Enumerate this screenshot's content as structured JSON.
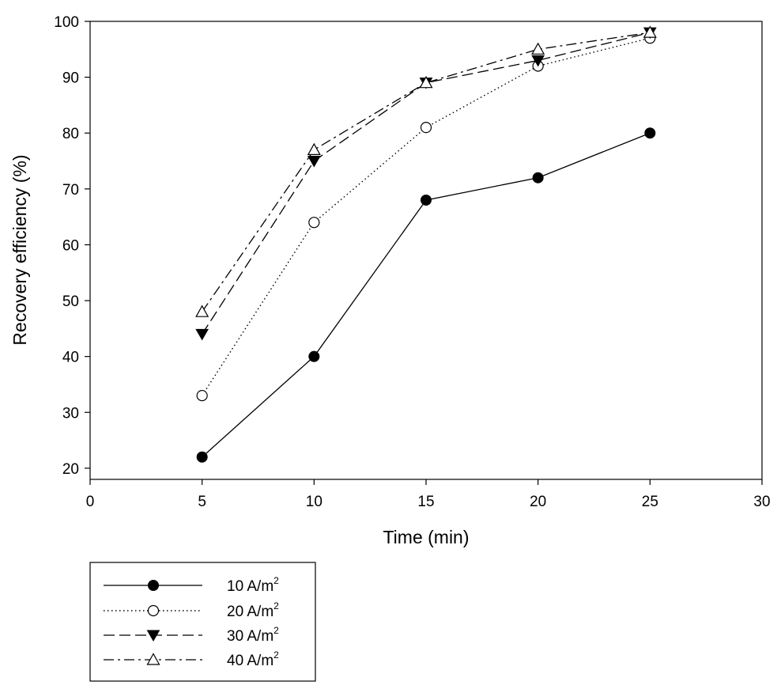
{
  "chart_data": {
    "type": "line",
    "title": "",
    "xlabel": "Time (min)",
    "ylabel": "Recovery efficiency (%)",
    "xlim": [
      0,
      30
    ],
    "ylim": [
      18,
      100
    ],
    "x_ticks": [
      0,
      5,
      10,
      15,
      20,
      25,
      30
    ],
    "y_ticks": [
      20,
      30,
      40,
      50,
      60,
      70,
      80,
      90,
      100
    ],
    "x": [
      5,
      10,
      15,
      20,
      25
    ],
    "grid": false,
    "legend_position": "bottom-left",
    "series": [
      {
        "name": "10 A/m",
        "unit_sup": "2",
        "marker": "filled-circle",
        "dash": "solid",
        "values": [
          22,
          40,
          68,
          72,
          80
        ]
      },
      {
        "name": "20 A/m",
        "unit_sup": "2",
        "marker": "open-circle",
        "dash": "dotted",
        "values": [
          33,
          64,
          81,
          92,
          97
        ]
      },
      {
        "name": "30 A/m",
        "unit_sup": "2",
        "marker": "filled-triangle-down",
        "dash": "dashed",
        "values": [
          44,
          75,
          89,
          93,
          98
        ]
      },
      {
        "name": "40 A/m",
        "unit_sup": "2",
        "marker": "open-triangle-up",
        "dash": "dash-dot",
        "values": [
          48,
          77,
          89,
          95,
          98
        ]
      }
    ]
  }
}
